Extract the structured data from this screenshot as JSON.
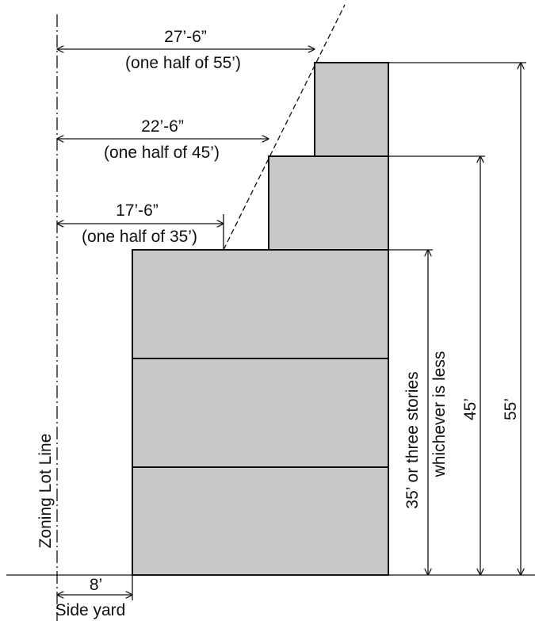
{
  "colors": {
    "building_fill": "#c8c8c8",
    "line": "#111111",
    "background": "#ffffff"
  },
  "labels": {
    "zoning_lot_line": "Zoning Lot Line",
    "side_yard": "Side yard",
    "side_yard_dim": "8’",
    "setback_top_dim": "27’-6”",
    "setback_top_note": "(one half of 55’)",
    "setback_mid_dim": "22’-6”",
    "setback_mid_note": "(one half of 45’)",
    "setback_low_dim": "17’-6”",
    "setback_low_note": "(one half of 35’)",
    "height_base_line1": "35’ or three stories",
    "height_base_line2": "whichever is less",
    "height_mid": "45’",
    "height_top": "55’"
  }
}
